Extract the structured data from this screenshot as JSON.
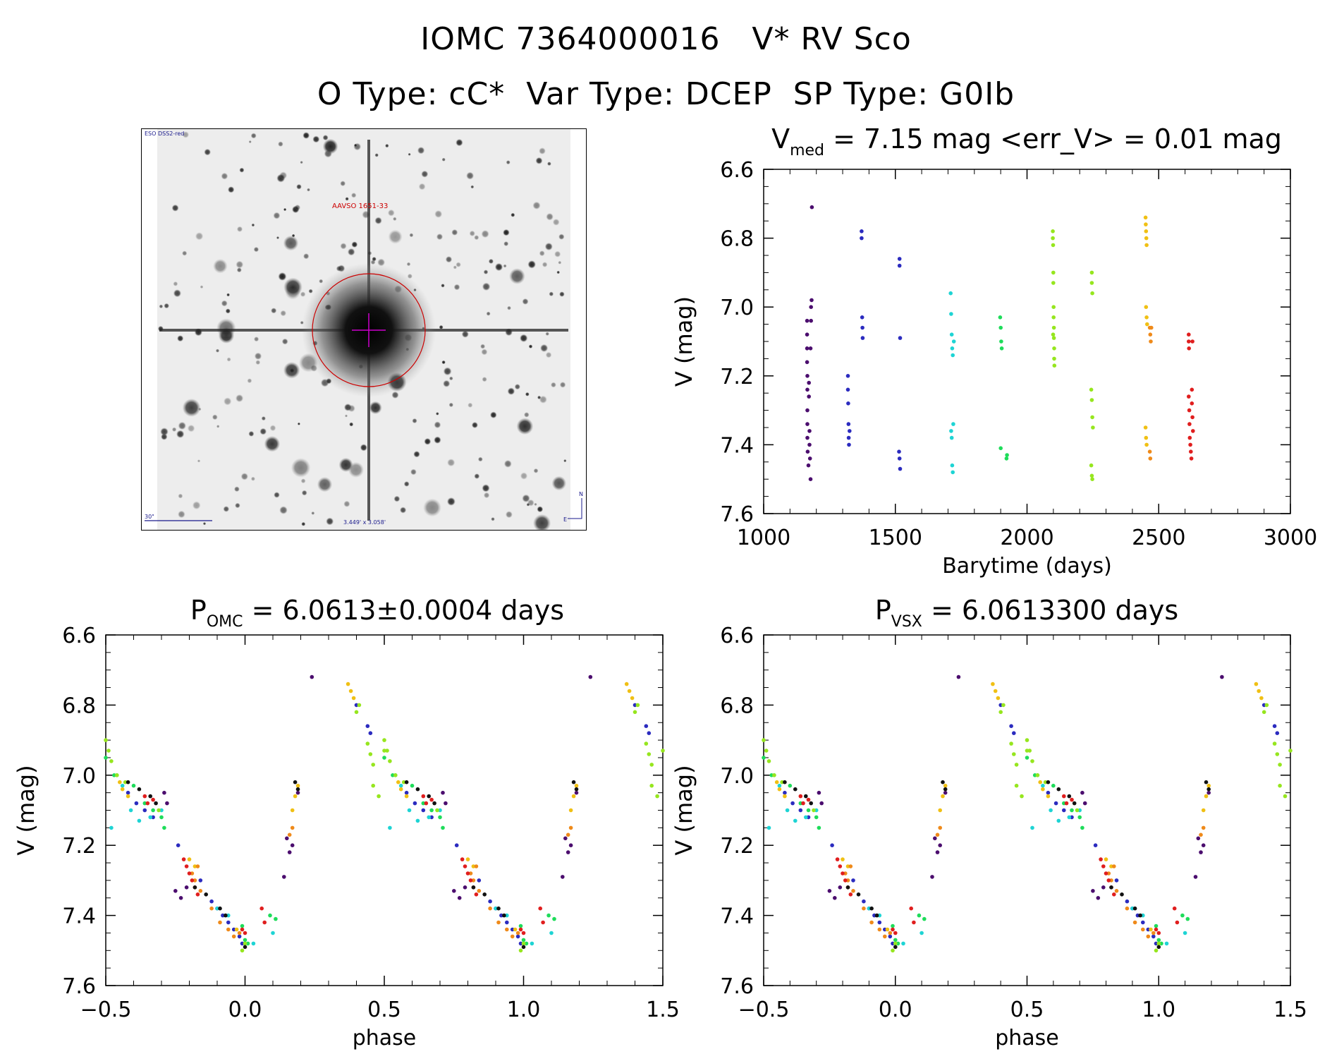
{
  "header": {
    "line1": "IOMC 7364000016   V* RV Sco",
    "line2": "O Type: cC*  Var Type: DCEP  SP Type: G0Ib"
  },
  "finder_chart": {
    "survey_label": "ESO DSS2-red",
    "target_label": "AAVSO 1651-33",
    "scale_label": "30\"",
    "fov_label": "3.449' x 3.058'",
    "north_label": "N",
    "east_label": "E",
    "colors": {
      "circle": "#cc0000",
      "crosshair": "#cc00cc",
      "labels_blue": "#1a1a8c"
    }
  },
  "chart_data": [
    {
      "id": "lightcurve",
      "type": "scatter",
      "title_main": "V",
      "title_sub": "med",
      "title_rest": " = 7.15 mag <err_V> = 0.01 mag",
      "xlabel": "Barytime (days)",
      "ylabel": "V (mag)",
      "xlim": [
        1000,
        3000
      ],
      "ylim": [
        7.6,
        6.6
      ],
      "y_inverted": true,
      "xticks": [
        1000,
        1500,
        2000,
        2500,
        3000
      ],
      "xtick_labels": [
        "1000",
        "1500",
        "2000",
        "2500",
        "3000"
      ],
      "yticks": [
        6.6,
        6.8,
        7.0,
        7.2,
        7.4,
        7.6
      ],
      "ytick_labels": [
        "6.6",
        "6.8",
        "7.0",
        "7.2",
        "7.4",
        "7.6"
      ],
      "groups": [
        {
          "color": "#4b0d6e",
          "points": [
            [
              1165,
              7.04
            ],
            [
              1165,
              7.08
            ],
            [
              1165,
              7.12
            ],
            [
              1165,
              7.16
            ],
            [
              1166,
              7.2
            ],
            [
              1166,
              7.24
            ],
            [
              1166,
              7.3
            ],
            [
              1166,
              7.34
            ],
            [
              1166,
              7.38
            ],
            [
              1167,
              7.42
            ],
            [
              1172,
              7.22
            ],
            [
              1172,
              7.26
            ],
            [
              1174,
              7.36
            ],
            [
              1174,
              7.4
            ],
            [
              1176,
              7.44
            ],
            [
              1178,
              7.5
            ],
            [
              1180,
              7.0
            ],
            [
              1180,
              7.04
            ],
            [
              1182,
              6.98
            ],
            [
              1183,
              6.71
            ],
            [
              1178,
              7.12
            ],
            [
              1170,
              7.46
            ]
          ]
        },
        {
          "color": "#2b2bbf",
          "points": [
            [
              1320,
              7.2
            ],
            [
              1320,
              7.24
            ],
            [
              1321,
              7.28
            ],
            [
              1322,
              7.34
            ],
            [
              1323,
              7.38
            ],
            [
              1324,
              7.4
            ],
            [
              1326,
              7.36
            ],
            [
              1372,
              6.78
            ],
            [
              1372,
              6.8
            ],
            [
              1374,
              7.03
            ],
            [
              1375,
              7.06
            ],
            [
              1376,
              7.09
            ],
            [
              1516,
              6.86
            ],
            [
              1516,
              6.88
            ],
            [
              1518,
              7.09
            ],
            [
              1514,
              7.42
            ],
            [
              1516,
              7.44
            ],
            [
              1518,
              7.47
            ]
          ]
        },
        {
          "color": "#1ed4d4",
          "points": [
            [
              1710,
              6.96
            ],
            [
              1712,
              7.02
            ],
            [
              1714,
              7.08
            ],
            [
              1716,
              7.12
            ],
            [
              1718,
              7.14
            ],
            [
              1712,
              7.36
            ],
            [
              1714,
              7.38
            ],
            [
              1716,
              7.46
            ],
            [
              1718,
              7.48
            ],
            [
              1720,
              7.34
            ],
            [
              1722,
              7.1
            ]
          ]
        },
        {
          "color": "#1edc5a",
          "points": [
            [
              1898,
              7.03
            ],
            [
              1900,
              7.06
            ],
            [
              1902,
              7.1
            ],
            [
              1904,
              7.12
            ],
            [
              1900,
              7.41
            ],
            [
              1922,
              7.44
            ],
            [
              1924,
              7.43
            ]
          ]
        },
        {
          "color": "#96e61e",
          "points": [
            [
              2098,
              6.78
            ],
            [
              2098,
              6.8
            ],
            [
              2099,
              6.82
            ],
            [
              2100,
              6.9
            ],
            [
              2100,
              6.93
            ],
            [
              2101,
              7.0
            ],
            [
              2101,
              7.03
            ],
            [
              2102,
              7.06
            ],
            [
              2102,
              7.09
            ],
            [
              2103,
              7.12
            ],
            [
              2103,
              7.15
            ],
            [
              2104,
              7.17
            ],
            [
              2099,
              7.08
            ],
            [
              2246,
              6.9
            ],
            [
              2246,
              6.93
            ],
            [
              2248,
              6.96
            ],
            [
              2244,
              7.24
            ],
            [
              2246,
              7.27
            ],
            [
              2248,
              7.32
            ],
            [
              2250,
              7.35
            ],
            [
              2244,
              7.46
            ],
            [
              2246,
              7.49
            ],
            [
              2248,
              7.5
            ]
          ]
        },
        {
          "color": "#f0c014",
          "points": [
            [
              2450,
              6.74
            ],
            [
              2451,
              6.76
            ],
            [
              2452,
              6.78
            ],
            [
              2453,
              6.8
            ],
            [
              2454,
              6.82
            ],
            [
              2452,
              7.0
            ],
            [
              2454,
              7.03
            ],
            [
              2456,
              7.05
            ],
            [
              2450,
              7.35
            ],
            [
              2452,
              7.38
            ],
            [
              2454,
              7.4
            ]
          ]
        },
        {
          "color": "#ef8a1a",
          "points": [
            [
              2466,
              7.06
            ],
            [
              2468,
              7.08
            ],
            [
              2470,
              7.1
            ],
            [
              2472,
              7.06
            ],
            [
              2466,
              7.42
            ],
            [
              2468,
              7.44
            ]
          ]
        },
        {
          "color": "#e01e1e",
          "points": [
            [
              2614,
              7.08
            ],
            [
              2614,
              7.1
            ],
            [
              2615,
              7.12
            ],
            [
              2614,
              7.26
            ],
            [
              2616,
              7.3
            ],
            [
              2617,
              7.34
            ],
            [
              2618,
              7.38
            ],
            [
              2620,
              7.4
            ],
            [
              2622,
              7.42
            ],
            [
              2624,
              7.44
            ],
            [
              2626,
              7.24
            ],
            [
              2626,
              7.28
            ],
            [
              2628,
              7.32
            ],
            [
              2630,
              7.36
            ],
            [
              2628,
              7.1
            ]
          ]
        }
      ]
    },
    {
      "id": "phase_omc",
      "type": "scatter",
      "title_main": "P",
      "title_sub": "OMC",
      "title_rest": " = 6.0613±0.0004 days",
      "xlabel": "phase",
      "ylabel": "V (mag)",
      "xlim": [
        -0.5,
        1.5
      ],
      "ylim": [
        7.6,
        6.6
      ],
      "y_inverted": true,
      "xticks": [
        -0.5,
        0.0,
        0.5,
        1.0,
        1.5
      ],
      "xtick_labels": [
        "−0.5",
        "0.0",
        "0.5",
        "1.0",
        "1.5"
      ],
      "yticks": [
        6.6,
        6.8,
        7.0,
        7.2,
        7.4,
        7.6
      ],
      "ytick_labels": [
        "6.6",
        "6.8",
        "7.0",
        "7.2",
        "7.4",
        "7.6"
      ],
      "period_repeat": 1.0,
      "groups": [
        {
          "color": "#4b0d6e",
          "points": [
            [
              -0.25,
              7.33
            ],
            [
              -0.23,
              7.35
            ],
            [
              -0.21,
              7.32
            ],
            [
              0.14,
              7.29
            ],
            [
              0.15,
              7.18
            ],
            [
              0.16,
              7.22
            ],
            [
              0.17,
              7.2
            ],
            [
              0.19,
              7.05
            ],
            [
              0.24,
              6.72
            ],
            [
              -0.29,
              7.05
            ],
            [
              -0.28,
              7.08
            ]
          ]
        },
        {
          "color": "#2b2bbf",
          "points": [
            [
              -0.42,
              7.05
            ],
            [
              -0.39,
              7.08
            ],
            [
              -0.36,
              7.1
            ],
            [
              -0.33,
              7.12
            ],
            [
              -0.24,
              7.2
            ],
            [
              -0.16,
              7.3
            ],
            [
              -0.12,
              7.36
            ],
            [
              -0.1,
              7.38
            ],
            [
              -0.08,
              7.4
            ],
            [
              -0.06,
              7.42
            ],
            [
              -0.04,
              7.44
            ],
            [
              -0.02,
              7.46
            ],
            [
              -0.01,
              7.48
            ],
            [
              0.44,
              6.86
            ],
            [
              0.45,
              6.88
            ],
            [
              0.4,
              6.8
            ]
          ]
        },
        {
          "color": "#1ed4d4",
          "points": [
            [
              -0.48,
              7.15
            ],
            [
              -0.46,
              7.0
            ],
            [
              -0.44,
              7.03
            ],
            [
              -0.41,
              7.1
            ],
            [
              -0.38,
              7.13
            ],
            [
              -0.34,
              7.12
            ],
            [
              -0.3,
              7.1
            ],
            [
              -0.1,
              7.38
            ],
            [
              -0.06,
              7.4
            ],
            [
              0.03,
              7.48
            ],
            [
              0.1,
              7.45
            ]
          ]
        },
        {
          "color": "#1edc5a",
          "points": [
            [
              -0.5,
              6.95
            ],
            [
              -0.47,
              7.0
            ],
            [
              -0.4,
              7.03
            ],
            [
              -0.36,
              7.08
            ],
            [
              -0.33,
              7.1
            ],
            [
              -0.3,
              7.12
            ],
            [
              -0.29,
              7.15
            ],
            [
              -0.01,
              7.43
            ],
            [
              0.0,
              7.47
            ],
            [
              0.01,
              7.48
            ],
            [
              0.09,
              7.4
            ],
            [
              0.11,
              7.41
            ]
          ]
        },
        {
          "color": "#96e61e",
          "points": [
            [
              -0.5,
              6.9
            ],
            [
              -0.49,
              6.93
            ],
            [
              -0.48,
              6.96
            ],
            [
              -0.46,
              7.0
            ],
            [
              -0.43,
              7.02
            ],
            [
              -0.31,
              7.1
            ],
            [
              -0.01,
              7.5
            ],
            [
              0.0,
              7.48
            ],
            [
              0.44,
              6.91
            ],
            [
              0.45,
              6.94
            ],
            [
              0.46,
              6.97
            ],
            [
              0.4,
              6.82
            ],
            [
              0.41,
              6.8
            ],
            [
              0.46,
              7.03
            ],
            [
              0.48,
              7.06
            ],
            [
              0.5,
              6.93
            ]
          ]
        },
        {
          "color": "#f0c014",
          "points": [
            [
              -0.45,
              7.02
            ],
            [
              -0.44,
              7.04
            ],
            [
              -0.42,
              7.06
            ],
            [
              -0.2,
              7.24
            ],
            [
              -0.18,
              7.26
            ],
            [
              -0.03,
              7.44
            ],
            [
              0.17,
              7.1
            ],
            [
              0.18,
              7.06
            ],
            [
              0.19,
              7.03
            ],
            [
              0.37,
              6.74
            ],
            [
              0.38,
              6.76
            ],
            [
              0.39,
              6.78
            ]
          ]
        },
        {
          "color": "#ef8a1a",
          "points": [
            [
              -0.18,
              7.3
            ],
            [
              -0.16,
              7.33
            ],
            [
              -0.12,
              7.38
            ],
            [
              -0.09,
              7.42
            ],
            [
              -0.06,
              7.44
            ],
            [
              -0.04,
              7.46
            ],
            [
              -0.02,
              7.45
            ],
            [
              0.17,
              7.15
            ],
            [
              0.16,
              7.17
            ],
            [
              -0.19,
              7.28
            ],
            [
              -0.17,
              7.26
            ]
          ]
        },
        {
          "color": "#e01e1e",
          "points": [
            [
              -0.22,
              7.24
            ],
            [
              -0.21,
              7.26
            ],
            [
              -0.2,
              7.28
            ],
            [
              -0.19,
              7.3
            ],
            [
              -0.18,
              7.32
            ],
            [
              -0.17,
              7.34
            ],
            [
              -0.36,
              7.06
            ],
            [
              -0.35,
              7.08
            ],
            [
              -0.33,
              7.07
            ],
            [
              -0.01,
              7.44
            ],
            [
              0.0,
              7.45
            ],
            [
              0.06,
              7.38
            ],
            [
              0.07,
              7.42
            ]
          ]
        },
        {
          "color": "#111111",
          "points": [
            [
              -0.42,
              7.02
            ],
            [
              -0.38,
              7.04
            ],
            [
              -0.34,
              7.06
            ],
            [
              -0.32,
              7.08
            ],
            [
              -0.18,
              7.32
            ],
            [
              -0.14,
              7.34
            ],
            [
              -0.09,
              7.38
            ],
            [
              -0.07,
              7.4
            ],
            [
              0.0,
              7.49
            ],
            [
              0.18,
              7.02
            ],
            [
              0.19,
              7.04
            ]
          ]
        }
      ]
    },
    {
      "id": "phase_vsx",
      "type": "scatter",
      "title_main": "P",
      "title_sub": "VSX",
      "title_rest": " = 6.0613300 days",
      "xlabel": "phase",
      "ylabel": "V (mag)",
      "xlim": [
        -0.5,
        1.5
      ],
      "ylim": [
        7.6,
        6.6
      ],
      "y_inverted": true,
      "xticks": [
        -0.5,
        0.0,
        0.5,
        1.0,
        1.5
      ],
      "xtick_labels": [
        "−0.5",
        "0.0",
        "0.5",
        "1.0",
        "1.5"
      ],
      "yticks": [
        6.6,
        6.8,
        7.0,
        7.2,
        7.4,
        7.6
      ],
      "ytick_labels": [
        "6.6",
        "6.8",
        "7.0",
        "7.2",
        "7.4",
        "7.6"
      ],
      "period_repeat": 1.0,
      "same_points_as": "phase_omc"
    }
  ]
}
